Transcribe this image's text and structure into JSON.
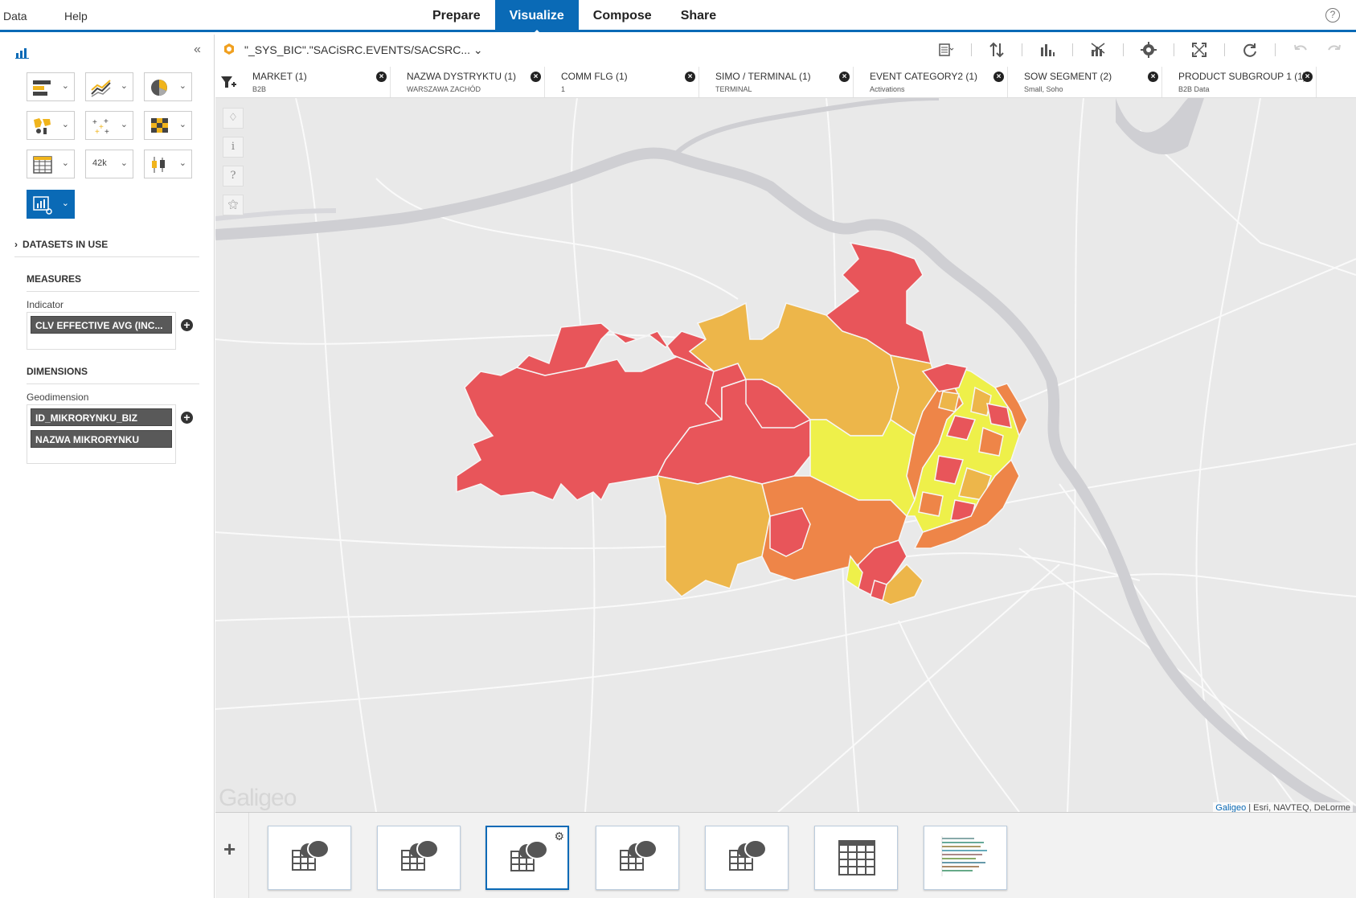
{
  "topbar": {
    "menu": [
      "Data",
      "Help"
    ],
    "tabs": [
      {
        "label": "Prepare",
        "active": false
      },
      {
        "label": "Visualize",
        "active": true
      },
      {
        "label": "Compose",
        "active": false
      },
      {
        "label": "Share",
        "active": false
      }
    ],
    "help": "?"
  },
  "left_panel": {
    "collapse": "«",
    "chart_pickers": [
      "bar-chart-icon",
      "line-chart-icon",
      "pie-chart-icon",
      "geo-map-icon",
      "scatter-chart-icon",
      "heatmap-icon",
      "table-icon",
      "numeric-point-icon",
      "box-plot-icon",
      "custom-chart-icon"
    ],
    "numeric_point_label": "42k",
    "datasets_in_use": "DATASETS IN USE",
    "measures": {
      "title": "MEASURES",
      "indicator_label": "Indicator",
      "indicator_value": "CLV EFFECTIVE AVG (INC..."
    },
    "dimensions": {
      "title": "DIMENSIONS",
      "geodimension_label": "Geodimension",
      "values": [
        "ID_MIKRORYNKU_BIZ",
        "NAZWA MIKRORYNKU"
      ]
    }
  },
  "toolbar": {
    "dataset": "\"_SYS_BIC\".\"SACiSRC.EVENTS/SACSRC...",
    "icons": [
      "settings-list-icon",
      "sort-icon",
      "rank-icon",
      "chart-type-icon",
      "gear-icon",
      "fullscreen-icon",
      "refresh-icon",
      "undo-icon",
      "redo-icon"
    ]
  },
  "filters": [
    {
      "title": "MARKET (1)",
      "value": "B2B"
    },
    {
      "title": "NAZWA DYSTRYKTU (1)",
      "value": "WARSZAWA ZACHÓD"
    },
    {
      "title": "COMM FLG (1)",
      "value": "1"
    },
    {
      "title": "SIMO / TERMINAL (1)",
      "value": "TERMINAL"
    },
    {
      "title": "EVENT CATEGORY2 (1)",
      "value": "Activations"
    },
    {
      "title": "SOW SEGMENT (2)",
      "value": "Small, Soho"
    },
    {
      "title": "PRODUCT SUBGROUP 1 (1)",
      "value": "B2B Data"
    }
  ],
  "map": {
    "watermark": "Galigeo",
    "attribution_link": "Galigeo",
    "attribution_rest": " | Esri, NAVTEQ, DeLorme",
    "tools": [
      "layers-icon",
      "info-icon",
      "help-icon",
      "filter-tool-icon"
    ],
    "colors": {
      "red": "#e8555a",
      "orange": "#ee8548",
      "amber": "#edb64a",
      "yellow": "#eef04a",
      "base": "#e9e9e9",
      "river": "#cfcfd3"
    }
  },
  "bottom": {
    "add": "+",
    "pages": [
      {
        "icon": "geo-map-icon",
        "active": false
      },
      {
        "icon": "geo-map-icon",
        "active": false
      },
      {
        "icon": "geo-map-icon",
        "active": true
      },
      {
        "icon": "geo-map-icon",
        "active": false
      },
      {
        "icon": "geo-map-icon",
        "active": false
      },
      {
        "icon": "table-icon",
        "active": false
      },
      {
        "icon": "bar-chart-preview-icon",
        "active": false
      }
    ]
  }
}
